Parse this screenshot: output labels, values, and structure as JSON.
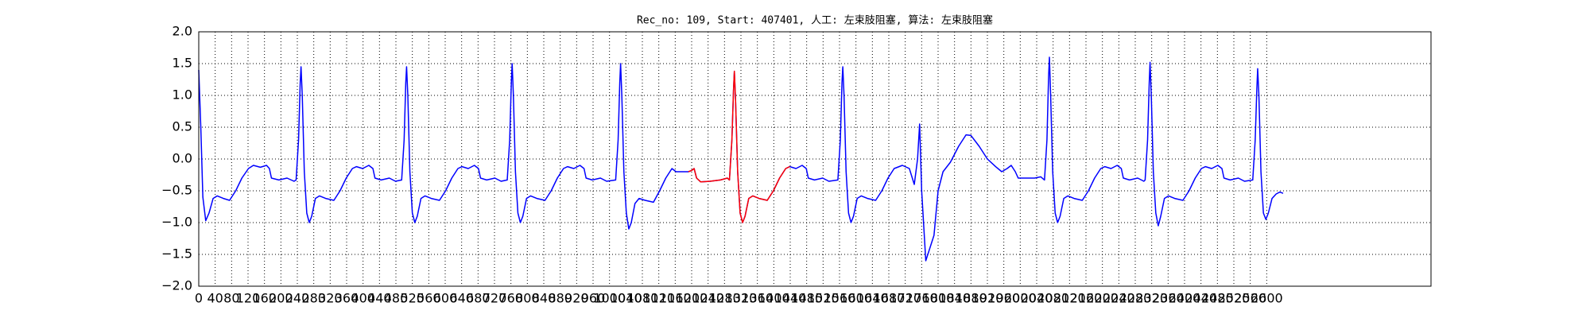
{
  "chart_data": {
    "type": "line",
    "title": "Rec_no: 109, Start: 407401, 人工: 左束肢阻塞, 算法: 左束肢阻塞",
    "xlim": [
      0,
      3000
    ],
    "ylim": [
      -2.0,
      2.0
    ],
    "grid": true,
    "xticks": [
      0,
      40,
      80,
      120,
      160,
      200,
      240,
      280,
      320,
      360,
      400,
      440,
      480,
      520,
      560,
      600,
      640,
      680,
      720,
      760,
      800,
      840,
      880,
      920,
      960,
      1000,
      1040,
      1080,
      1120,
      1160,
      1200,
      1240,
      1280,
      1320,
      1360,
      1400,
      1440,
      1480,
      1520,
      1560,
      1600,
      1640,
      1680,
      1720,
      1760,
      1800,
      1840,
      1880,
      1920,
      1960,
      2000,
      2040,
      2080,
      2120,
      2160,
      2200,
      2240,
      2280,
      2320,
      2360,
      2400,
      2440,
      2480,
      2520,
      2560,
      2600
    ],
    "yticks": [
      {
        "value": -2.0,
        "label": "−2.0"
      },
      {
        "value": -1.5,
        "label": "−1.5"
      },
      {
        "value": -1.0,
        "label": "−1.0"
      },
      {
        "value": -0.5,
        "label": "−0.5"
      },
      {
        "value": 0.0,
        "label": "0.0"
      },
      {
        "value": 0.5,
        "label": "0.5"
      },
      {
        "value": 1.0,
        "label": "1.0"
      },
      {
        "value": 1.5,
        "label": "1.5"
      },
      {
        "value": 2.0,
        "label": "2.0"
      }
    ],
    "series": [
      {
        "color": "#0000ff",
        "x": [
          0,
          5,
          10,
          17,
          25,
          35,
          45,
          60,
          75,
          90,
          105,
          121,
          133,
          150,
          165,
          172,
          177,
          195,
          215,
          232,
          237,
          243,
          247,
          249,
          252,
          257,
          263,
          269,
          275,
          284,
          294,
          309,
          329,
          344,
          359,
          374,
          384,
          399,
          414,
          424,
          429,
          444,
          464,
          479,
          494,
          500,
          504,
          506,
          509,
          514,
          520,
          526,
          532,
          541,
          551,
          566,
          586,
          601,
          616,
          631,
          641,
          656,
          671,
          681,
          686,
          701,
          721,
          736,
          751,
          757,
          761,
          763,
          766,
          771,
          777,
          783,
          789,
          798,
          808,
          823,
          843,
          858,
          873,
          888,
          898,
          913,
          928,
          938,
          943,
          958,
          978,
          993,
          1015,
          1021,
          1025,
          1027,
          1030,
          1035,
          1041,
          1047,
          1053,
          1062,
          1072,
          1087,
          1107,
          1122,
          1137,
          1152,
          1162,
          1177,
          1192,
          1200,
          1206,
          1212,
          1222,
          1245,
          1270,
          1287,
          1292,
          1298,
          1302,
          1304,
          1307,
          1312,
          1318,
          1324,
          1330,
          1339,
          1349,
          1364,
          1384,
          1399,
          1414,
          1429,
          1439,
          1454,
          1469,
          1479,
          1484,
          1499,
          1519,
          1534,
          1556,
          1562,
          1566,
          1568,
          1571,
          1576,
          1582,
          1588,
          1594,
          1603,
          1613,
          1628,
          1648,
          1663,
          1678,
          1693,
          1713,
          1730,
          1742,
          1750,
          1755,
          1760,
          1770,
          1780,
          1790,
          1800,
          1812,
          1830,
          1850,
          1868,
          1880,
          1900,
          1920,
          1940,
          1955,
          1968,
          1978,
          1988,
          1995,
          2015,
          2035,
          2050,
          2059,
          2065,
          2069,
          2071,
          2074,
          2079,
          2085,
          2091,
          2097,
          2106,
          2116,
          2131,
          2151,
          2166,
          2181,
          2196,
          2206,
          2221,
          2236,
          2246,
          2251,
          2266,
          2286,
          2301,
          2304,
          2310,
          2314,
          2316,
          2319,
          2324,
          2330,
          2336,
          2342,
          2351,
          2361,
          2376,
          2396,
          2411,
          2426,
          2441,
          2451,
          2466,
          2481,
          2491,
          2496,
          2511,
          2531,
          2546,
          2566,
          2572,
          2576,
          2578,
          2581,
          2586,
          2592,
          2598,
          2604,
          2613,
          2623,
          2632,
          2640
        ],
        "values": [
          1.4,
          0.5,
          -0.6,
          -0.97,
          -0.85,
          -0.62,
          -0.58,
          -0.62,
          -0.65,
          -0.5,
          -0.3,
          -0.15,
          -0.1,
          -0.13,
          -0.1,
          -0.15,
          -0.3,
          -0.33,
          -0.3,
          -0.35,
          -0.33,
          0.3,
          1.2,
          1.45,
          1.0,
          -0.2,
          -0.85,
          -1.0,
          -0.9,
          -0.62,
          -0.58,
          -0.62,
          -0.65,
          -0.5,
          -0.3,
          -0.15,
          -0.12,
          -0.15,
          -0.1,
          -0.15,
          -0.3,
          -0.33,
          -0.3,
          -0.35,
          -0.33,
          0.3,
          1.2,
          1.45,
          1.0,
          -0.2,
          -0.85,
          -1.0,
          -0.9,
          -0.62,
          -0.58,
          -0.62,
          -0.65,
          -0.5,
          -0.3,
          -0.15,
          -0.12,
          -0.15,
          -0.1,
          -0.15,
          -0.3,
          -0.33,
          -0.3,
          -0.35,
          -0.33,
          0.3,
          1.2,
          1.5,
          1.0,
          -0.2,
          -0.85,
          -1.0,
          -0.9,
          -0.62,
          -0.58,
          -0.62,
          -0.65,
          -0.5,
          -0.3,
          -0.15,
          -0.12,
          -0.15,
          -0.1,
          -0.15,
          -0.3,
          -0.33,
          -0.3,
          -0.35,
          -0.33,
          0.3,
          1.2,
          1.5,
          1.0,
          -0.2,
          -0.85,
          -1.1,
          -1.0,
          -0.7,
          -0.62,
          -0.65,
          -0.68,
          -0.5,
          -0.3,
          -0.15,
          -0.2,
          -0.2,
          -0.2,
          -0.18,
          -0.15,
          -0.3,
          -0.36,
          -0.35,
          -0.33,
          -0.3,
          -0.33,
          0.3,
          1.1,
          1.38,
          0.9,
          -0.2,
          -0.85,
          -1.0,
          -0.9,
          -0.62,
          -0.58,
          -0.62,
          -0.65,
          -0.5,
          -0.3,
          -0.15,
          -0.12,
          -0.15,
          -0.1,
          -0.15,
          -0.3,
          -0.33,
          -0.3,
          -0.35,
          -0.33,
          0.3,
          1.2,
          1.45,
          1.0,
          -0.2,
          -0.85,
          -1.0,
          -0.9,
          -0.62,
          -0.58,
          -0.62,
          -0.65,
          -0.5,
          -0.3,
          -0.15,
          -0.1,
          -0.15,
          -0.4,
          0.0,
          0.55,
          -0.5,
          -1.6,
          -1.4,
          -1.2,
          -0.5,
          -0.2,
          -0.05,
          0.2,
          0.38,
          0.37,
          0.2,
          0.0,
          -0.12,
          -0.2,
          -0.15,
          -0.1,
          -0.2,
          -0.3,
          -0.3,
          -0.3,
          -0.28,
          -0.33,
          0.3,
          1.3,
          1.6,
          1.0,
          -0.2,
          -0.85,
          -1.0,
          -0.9,
          -0.62,
          -0.58,
          -0.62,
          -0.65,
          -0.5,
          -0.3,
          -0.15,
          -0.12,
          -0.15,
          -0.1,
          -0.15,
          -0.3,
          -0.33,
          -0.3,
          -0.35,
          -0.33,
          0.3,
          1.2,
          1.52,
          1.0,
          -0.2,
          -0.85,
          -1.05,
          -0.9,
          -0.62,
          -0.58,
          -0.62,
          -0.65,
          -0.5,
          -0.3,
          -0.15,
          -0.12,
          -0.15,
          -0.1,
          -0.15,
          -0.3,
          -0.33,
          -0.3,
          -0.35,
          -0.33,
          0.3,
          1.1,
          1.42,
          1.0,
          -0.2,
          -0.85,
          -0.95,
          -0.85,
          -0.62,
          -0.55,
          -0.52,
          -0.54
        ]
      },
      {
        "color": "#ff0000",
        "x": [
          1192,
          1200,
          1206,
          1212,
          1222,
          1245,
          1270,
          1287,
          1292,
          1298,
          1302,
          1304,
          1307,
          1312,
          1318,
          1324,
          1330,
          1339,
          1349,
          1364,
          1384,
          1399,
          1414,
          1429,
          1439
        ],
        "values": [
          -0.2,
          -0.18,
          -0.15,
          -0.3,
          -0.36,
          -0.35,
          -0.33,
          -0.3,
          -0.33,
          0.3,
          1.1,
          1.38,
          0.9,
          -0.2,
          -0.85,
          -1.0,
          -0.9,
          -0.62,
          -0.58,
          -0.62,
          -0.65,
          -0.5,
          -0.3,
          -0.15,
          -0.12
        ]
      }
    ]
  }
}
